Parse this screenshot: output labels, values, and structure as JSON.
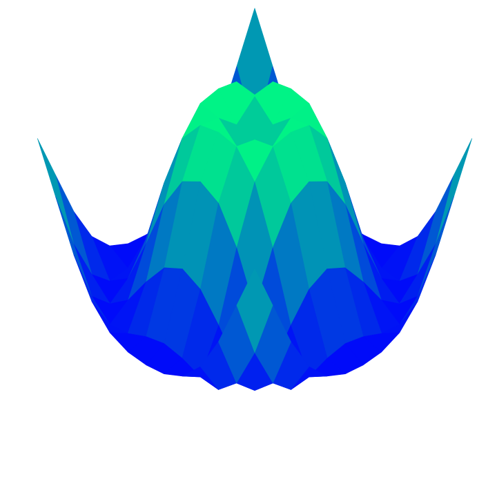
{
  "chart_data": {
    "type": "surface",
    "colormap": [
      "#0000ff",
      "#00ff80"
    ],
    "xlim": [
      -5,
      5
    ],
    "ylim": [
      -5,
      5
    ],
    "zlim": [
      -1,
      1
    ],
    "x": [
      -5,
      -4.17,
      -3.33,
      -2.5,
      -1.67,
      -0.83,
      0,
      0.83,
      1.67,
      2.5,
      3.33,
      4.17,
      5
    ],
    "y": [
      -5,
      -4.17,
      -3.33,
      -2.5,
      -1.67,
      -0.83,
      0,
      0.83,
      1.67,
      2.5,
      3.33,
      4.17,
      5
    ],
    "z": [
      [
        0.71,
        0.22,
        -0.27,
        -0.64,
        -0.85,
        -0.94,
        -0.96,
        -0.94,
        -0.85,
        -0.64,
        -0.27,
        0.22,
        0.71
      ],
      [
        0.22,
        -0.38,
        -0.81,
        -0.99,
        -0.97,
        -0.89,
        -0.85,
        -0.89,
        -0.97,
        -0.99,
        -0.81,
        -0.38,
        0.22
      ],
      [
        -0.27,
        -0.81,
        -1,
        -0.85,
        -0.55,
        -0.29,
        -0.19,
        -0.29,
        -0.55,
        -0.85,
        -1,
        -0.81,
        -0.27
      ],
      [
        -0.64,
        -0.99,
        -0.85,
        -0.38,
        0.14,
        0.49,
        0.6,
        0.49,
        0.14,
        -0.38,
        -0.85,
        -0.99,
        -0.64
      ],
      [
        -0.85,
        -0.97,
        -0.55,
        0.14,
        0.71,
        0.96,
        1,
        0.96,
        0.71,
        0.14,
        -0.55,
        -0.97,
        -0.85
      ],
      [
        -0.94,
        -0.89,
        -0.29,
        0.49,
        0.96,
        0.92,
        0.74,
        0.92,
        0.96,
        0.49,
        -0.29,
        -0.89,
        -0.94
      ],
      [
        -0.96,
        -0.85,
        -0.19,
        0.6,
        1,
        0.74,
        0,
        0.74,
        1,
        0.6,
        -0.19,
        -0.85,
        -0.96
      ],
      [
        -0.94,
        -0.89,
        -0.29,
        0.49,
        0.96,
        0.92,
        0.74,
        0.92,
        0.96,
        0.49,
        -0.29,
        -0.89,
        -0.94
      ],
      [
        -0.85,
        -0.97,
        -0.55,
        0.14,
        0.71,
        0.96,
        1,
        0.96,
        0.71,
        0.14,
        -0.55,
        -0.97,
        -0.85
      ],
      [
        -0.64,
        -0.99,
        -0.85,
        -0.38,
        0.14,
        0.49,
        0.6,
        0.49,
        0.14,
        -0.38,
        -0.85,
        -0.99,
        -0.64
      ],
      [
        -0.27,
        -0.81,
        -1,
        -0.85,
        -0.55,
        -0.29,
        -0.19,
        -0.29,
        -0.55,
        -0.85,
        -1,
        -0.81,
        -0.27
      ],
      [
        0.22,
        -0.38,
        -0.81,
        -0.99,
        -0.97,
        -0.89,
        -0.85,
        -0.89,
        -0.97,
        -0.99,
        -0.81,
        -0.38,
        0.22
      ],
      [
        0.71,
        0.22,
        -0.27,
        -0.64,
        -0.85,
        -0.94,
        -0.96,
        -0.94,
        -0.85,
        -0.64,
        -0.27,
        0.22,
        0.71
      ]
    ]
  }
}
